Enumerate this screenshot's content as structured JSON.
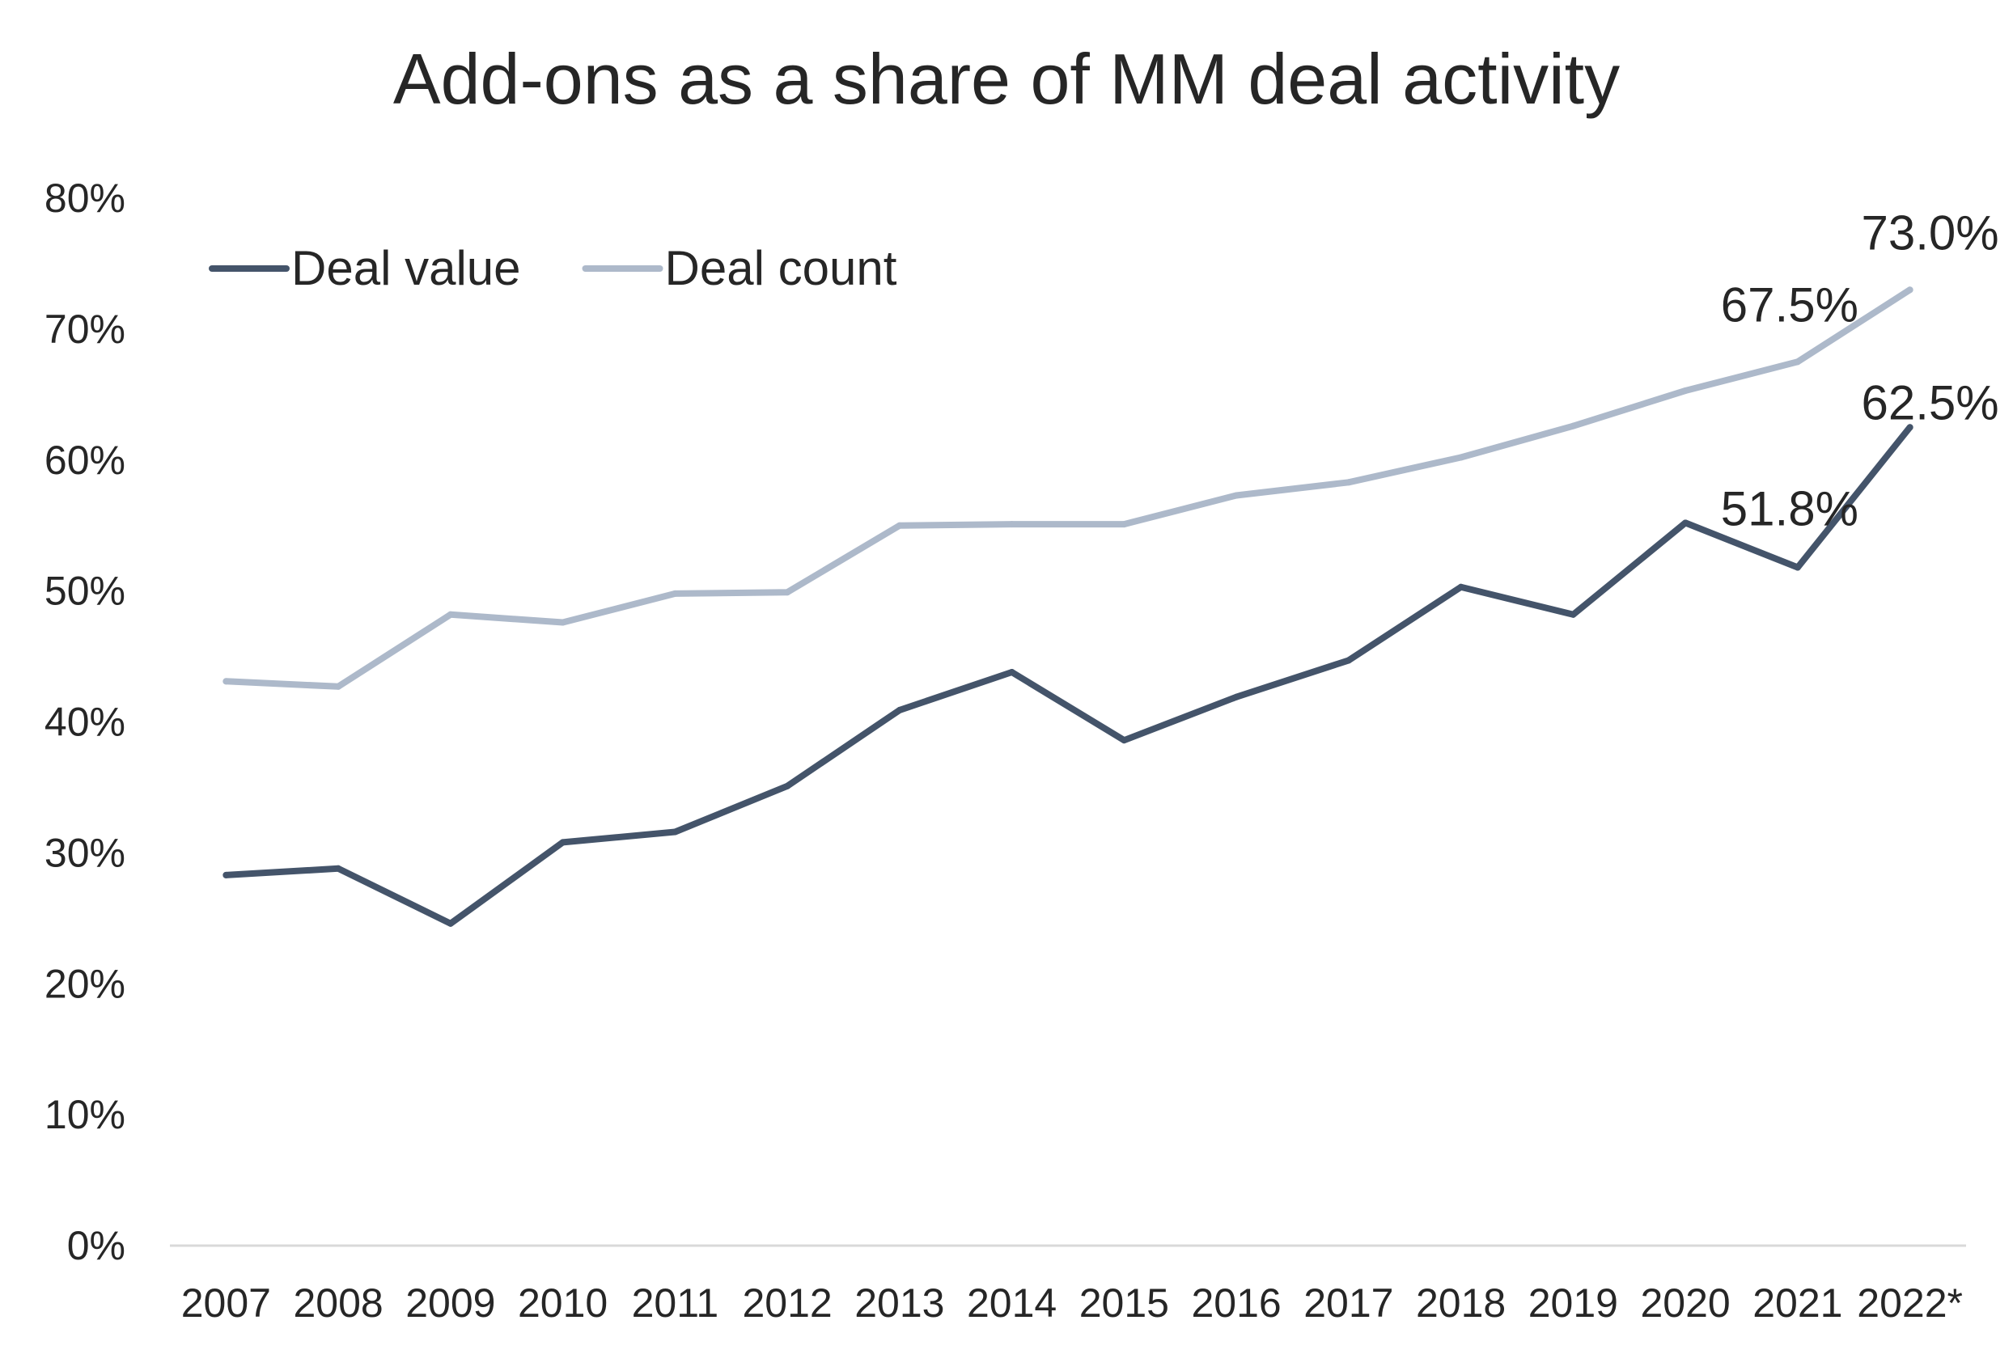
{
  "chart_data": {
    "type": "line",
    "title": "Add-ons as a share of MM deal activity",
    "xlabel": "",
    "ylabel": "",
    "categories": [
      "2007",
      "2008",
      "2009",
      "2010",
      "2011",
      "2012",
      "2013",
      "2014",
      "2015",
      "2016",
      "2017",
      "2018",
      "2019",
      "2020",
      "2021",
      "2022*"
    ],
    "y_ticks": [
      "0%",
      "10%",
      "20%",
      "30%",
      "40%",
      "50%",
      "60%",
      "70%",
      "80%"
    ],
    "ylim": [
      0,
      80
    ],
    "grid": false,
    "legend_position": "top-left",
    "series": [
      {
        "name": "Deal value",
        "color": "#44546a",
        "values": [
          28.3,
          28.8,
          24.6,
          30.8,
          31.6,
          35.1,
          40.9,
          43.8,
          38.6,
          41.9,
          44.7,
          50.3,
          48.2,
          55.2,
          51.8,
          62.5
        ],
        "labels": [
          {
            "index": 14,
            "text": "51.8%"
          },
          {
            "index": 15,
            "text": "62.5%"
          }
        ]
      },
      {
        "name": "Deal count",
        "color": "#adb9ca",
        "values": [
          43.1,
          42.7,
          48.2,
          47.6,
          49.8,
          49.9,
          55.0,
          55.1,
          55.1,
          57.3,
          58.3,
          60.2,
          62.6,
          65.3,
          67.5,
          73.0
        ],
        "labels": [
          {
            "index": 14,
            "text": "67.5%"
          },
          {
            "index": 15,
            "text": "73.0%"
          }
        ]
      }
    ]
  }
}
